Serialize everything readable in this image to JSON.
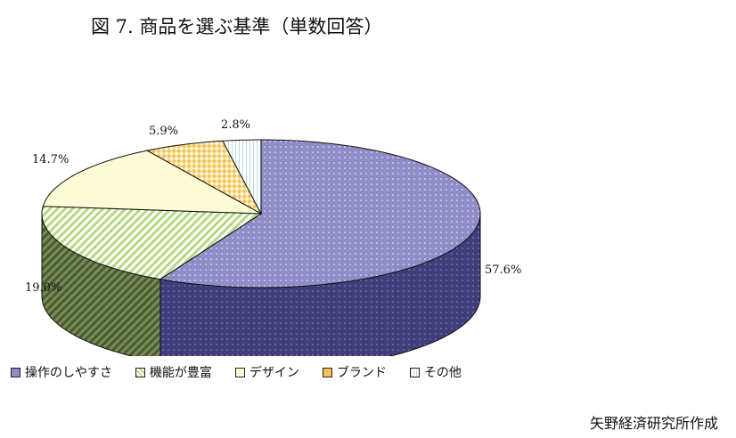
{
  "title": "図 7.  商品を選ぶ基準（単数回答）",
  "source": "矢野経済研究所作成",
  "chart_data": {
    "type": "pie",
    "title": "図 7.  商品を選ぶ基準（単数回答）",
    "slices": [
      {
        "label": "操作のしやすさ",
        "value": 57.6,
        "display": "57.6%",
        "color": "#8f8cc8",
        "side_color": "#3f3d7a",
        "pattern": "dots"
      },
      {
        "label": "機能が豊富",
        "value": 19.0,
        "display": "19.0%",
        "color": "#d8ecb0",
        "side_color": "#5c6e40",
        "pattern": "diagonal"
      },
      {
        "label": "デザイン",
        "value": 14.7,
        "display": "14.7%",
        "color": "#fdfbd6",
        "side_color": "#b8b48a",
        "pattern": "none"
      },
      {
        "label": "ブランド",
        "value": 5.9,
        "display": "5.9%",
        "color": "#f2c45a",
        "side_color": "#a07a20",
        "pattern": "checker"
      },
      {
        "label": "その他",
        "value": 2.8,
        "display": "2.8%",
        "color": "#e6f2f8",
        "side_color": "#7a8a90",
        "pattern": "vlines"
      }
    ],
    "legend_placement": "bottom"
  }
}
